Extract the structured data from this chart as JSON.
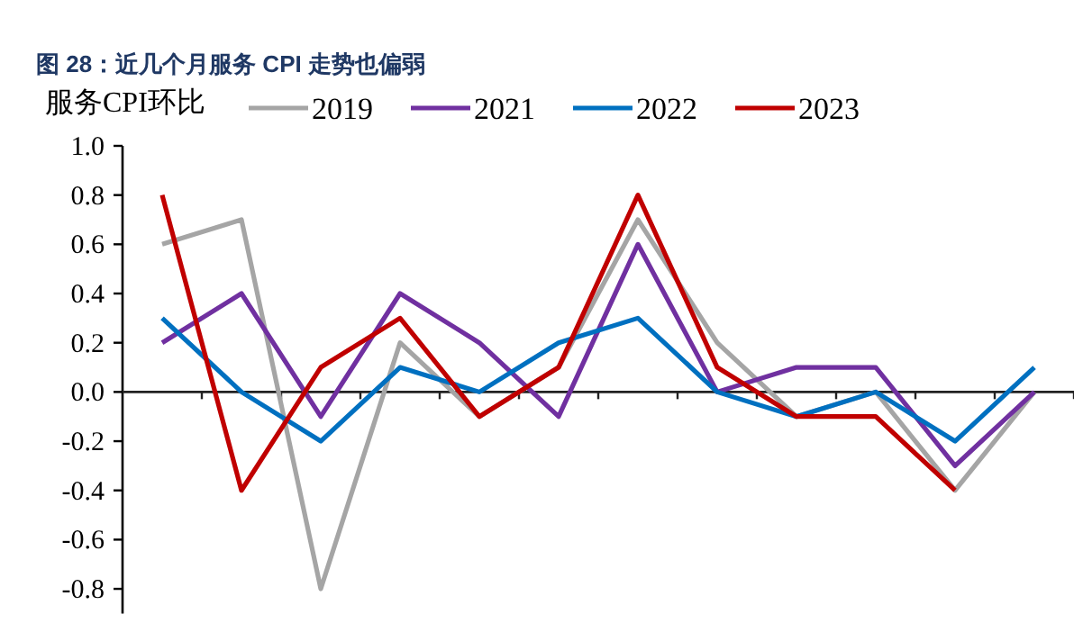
{
  "chart_data": {
    "type": "line",
    "title": "图 28：近几个月服务 CPI 走势也偏弱",
    "ylabel": "服务CPI环比",
    "legend": "top",
    "categories": [
      null,
      null,
      null,
      null,
      null,
      null,
      null,
      null,
      null,
      null,
      null,
      null
    ],
    "series": [
      {
        "name": "2019",
        "color": "#a5a5a5",
        "values": [
          0.6,
          0.7,
          -0.8,
          0.2,
          -0.1,
          0.1,
          0.7,
          0.2,
          -0.1,
          0.0,
          -0.4,
          0.0
        ]
      },
      {
        "name": "2021",
        "color": "#7030a0",
        "values": [
          0.2,
          0.4,
          -0.1,
          0.4,
          0.2,
          -0.1,
          0.6,
          0.0,
          0.1,
          0.1,
          -0.3,
          0.0
        ]
      },
      {
        "name": "2022",
        "color": "#0070c0",
        "values": [
          0.3,
          0.0,
          -0.2,
          0.1,
          0.0,
          0.2,
          0.3,
          0.0,
          -0.1,
          0.0,
          -0.2,
          0.1
        ]
      },
      {
        "name": "2023",
        "color": "#c00000",
        "values": [
          0.8,
          -0.4,
          0.1,
          0.3,
          -0.1,
          0.1,
          0.8,
          0.1,
          -0.1,
          -0.1,
          -0.4,
          null
        ]
      }
    ],
    "ylim": [
      -0.9,
      1.0
    ],
    "yticks": [
      {
        "value": 1.0,
        "label": "1.0"
      },
      {
        "value": 0.8,
        "label": "0.8"
      },
      {
        "value": 0.6,
        "label": "0.6"
      },
      {
        "value": 0.4,
        "label": "0.4"
      },
      {
        "value": 0.2,
        "label": "0.2"
      },
      {
        "value": 0.0,
        "label": "0.0"
      },
      {
        "value": -0.2,
        "label": "-0.2"
      },
      {
        "value": -0.4,
        "label": "-0.4"
      },
      {
        "value": -0.6,
        "label": "-0.6"
      },
      {
        "value": -0.8,
        "label": "-0.8"
      }
    ]
  }
}
